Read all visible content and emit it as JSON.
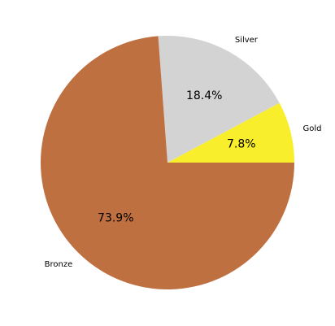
{
  "chart_data": {
    "type": "pie",
    "title": "",
    "start_angle_deg": 0,
    "direction": "counterclockwise",
    "slices": [
      {
        "label": "Gold",
        "value": 7.8,
        "pct_label": "7.8%",
        "color": "#f8ee2c"
      },
      {
        "label": "Silver",
        "value": 18.4,
        "pct_label": "18.4%",
        "color": "#d3d3d3"
      },
      {
        "label": "Bronze",
        "value": 73.9,
        "pct_label": "73.9%",
        "color": "#bf7041"
      }
    ],
    "background": "#ffffff"
  }
}
